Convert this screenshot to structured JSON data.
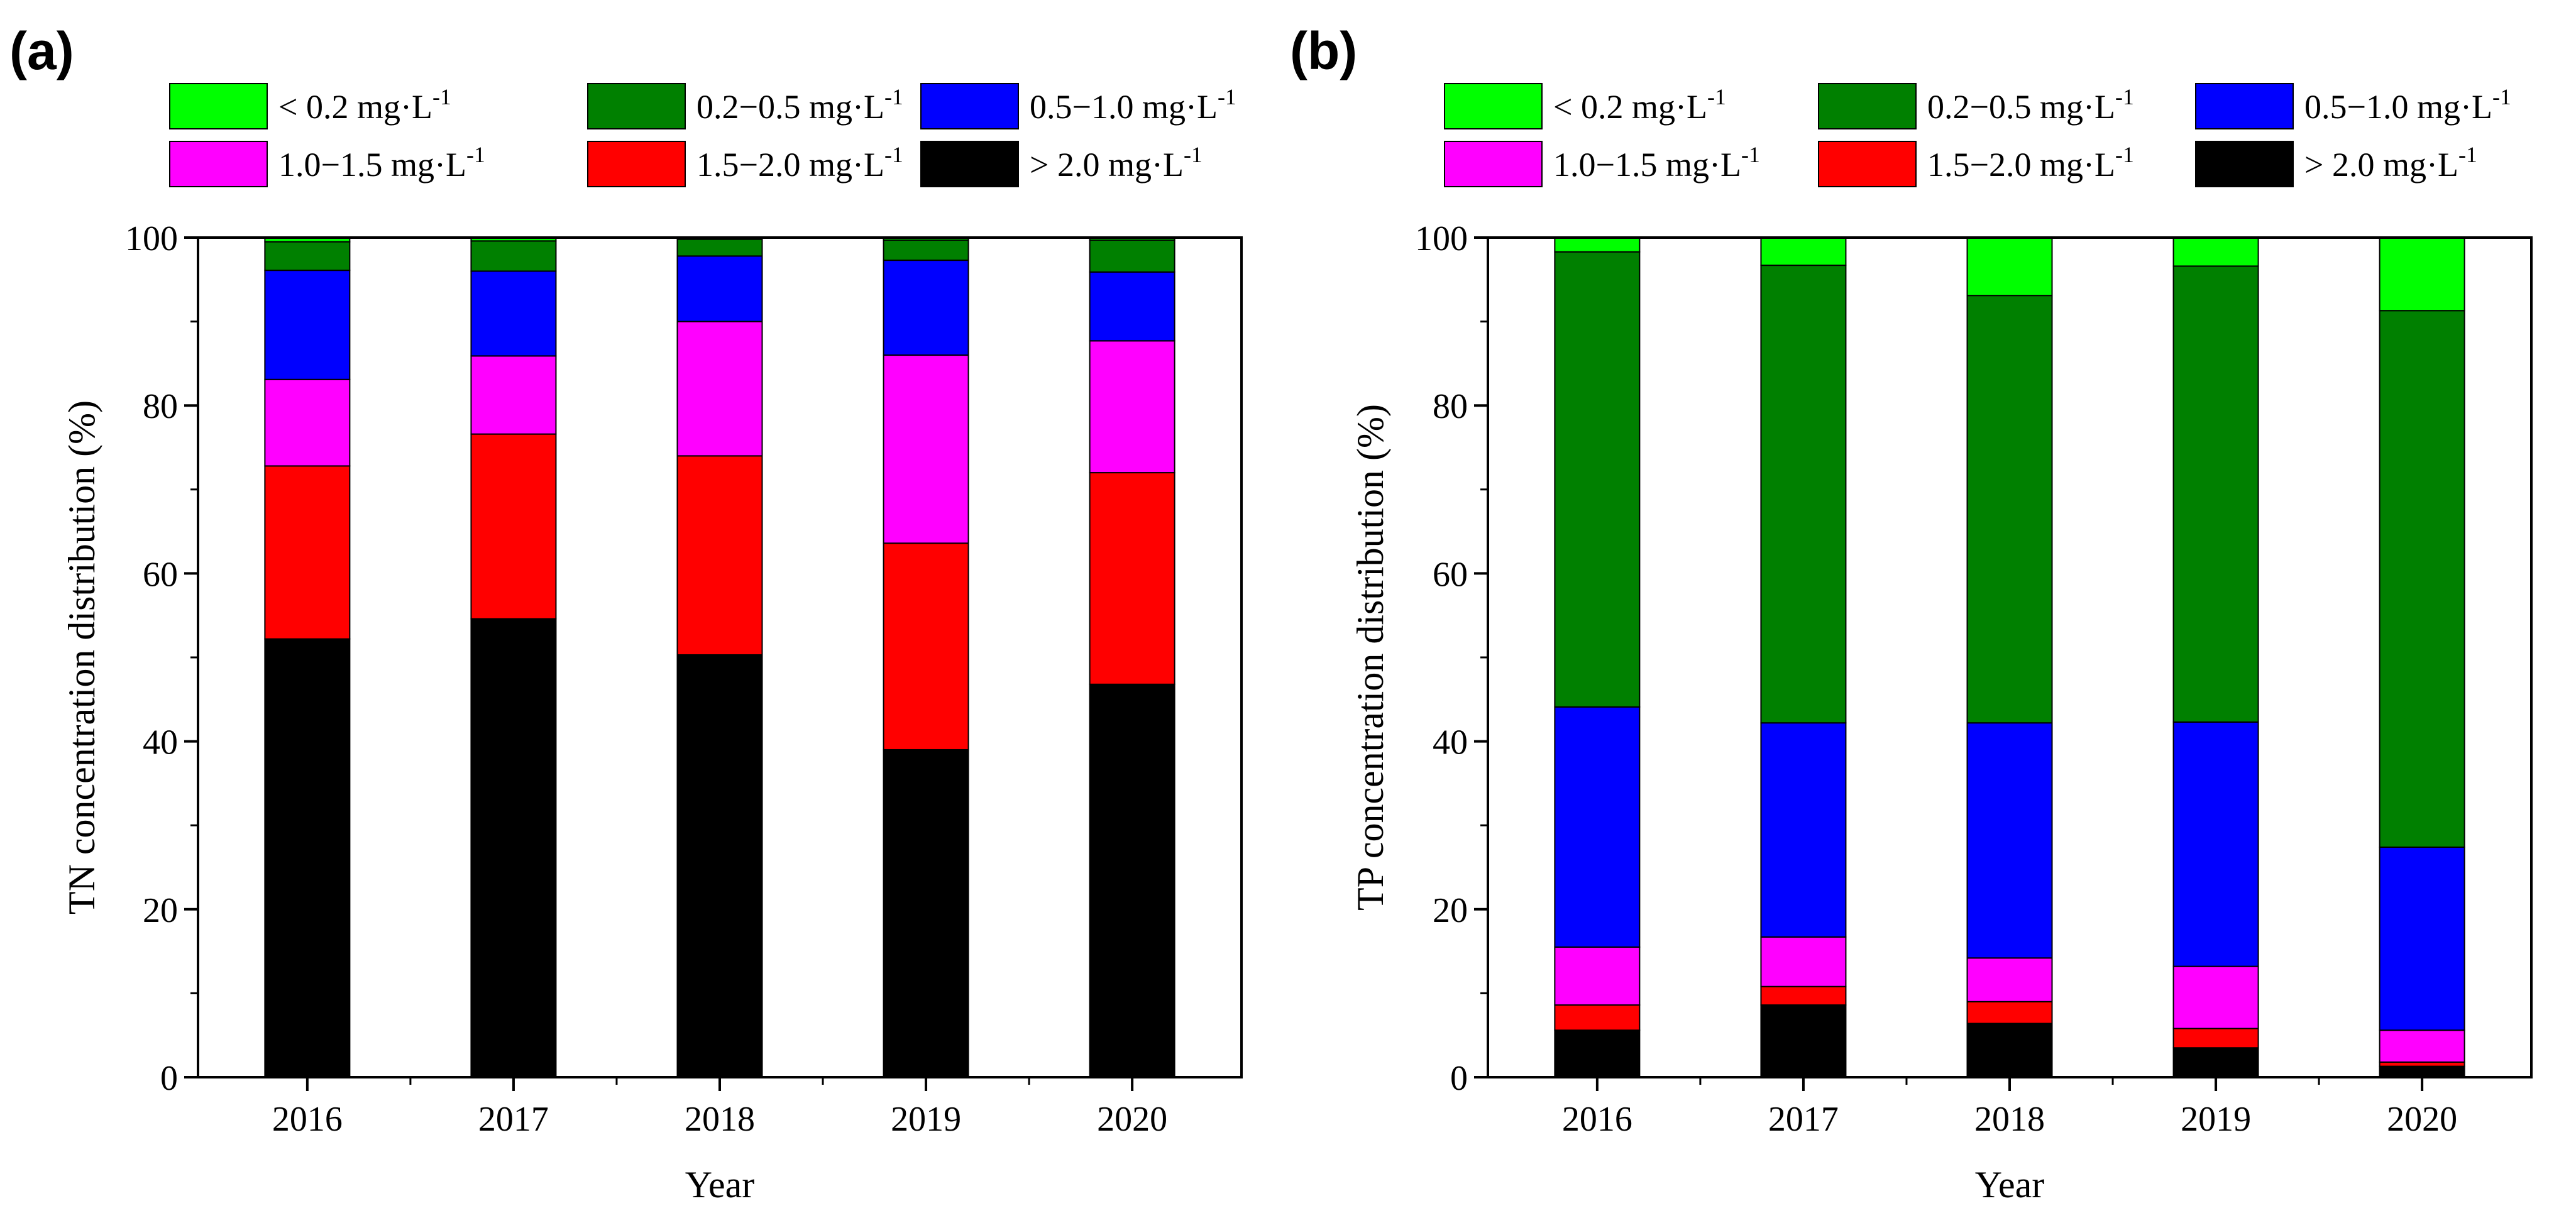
{
  "chart_data": [
    {
      "panel_label": "(a)",
      "type": "bar",
      "stacked": true,
      "title": "",
      "xlabel": "Year",
      "ylabel": "TN concentration distribution (%)",
      "ylim": [
        0,
        100
      ],
      "yticks": [
        "0",
        "20",
        "40",
        "60",
        "80",
        "100"
      ],
      "categories": [
        "2016",
        "2017",
        "2018",
        "2019",
        "2020"
      ],
      "legend_position": "top",
      "series": [
        {
          "name": "> 2.0 mg·L",
          "sup": "-1",
          "color": "#000000",
          "values": [
            52.2,
            54.6,
            50.3,
            39.0,
            46.8
          ]
        },
        {
          "name": "1.5−2.0 mg·L",
          "sup": "-1",
          "color": "#ff0000",
          "values": [
            20.6,
            22.0,
            23.7,
            24.6,
            25.2
          ]
        },
        {
          "name": "1.0−1.5 mg·L",
          "sup": "-1",
          "color": "#ff00ff",
          "values": [
            10.3,
            9.3,
            16.0,
            22.4,
            15.7
          ]
        },
        {
          "name": "0.5−1.0 mg·L",
          "sup": "-1",
          "color": "#0000ff",
          "values": [
            13.0,
            10.1,
            7.8,
            11.3,
            8.2
          ]
        },
        {
          "name": "0.2−0.5 mg·L",
          "sup": "-1",
          "color": "#008000",
          "values": [
            3.4,
            3.6,
            2.0,
            2.4,
            3.8
          ]
        },
        {
          "name": "< 0.2 mg·L",
          "sup": "-1",
          "color": "#00ff00",
          "values": [
            0.5,
            0.4,
            0.2,
            0.3,
            0.3
          ]
        }
      ]
    },
    {
      "panel_label": "(b)",
      "type": "bar",
      "stacked": true,
      "title": "",
      "xlabel": "Year",
      "ylabel": "TP concentration distribution (%)",
      "ylim": [
        0,
        100
      ],
      "yticks": [
        "0",
        "20",
        "40",
        "60",
        "80",
        "100"
      ],
      "categories": [
        "2016",
        "2017",
        "2018",
        "2019",
        "2020"
      ],
      "legend_position": "top",
      "series": [
        {
          "name": "> 2.0 mg·L",
          "sup": "-1",
          "color": "#000000",
          "values": [
            5.6,
            8.6,
            6.4,
            3.5,
            1.3
          ]
        },
        {
          "name": "1.5−2.0 mg·L",
          "sup": "-1",
          "color": "#ff0000",
          "values": [
            3.0,
            2.2,
            2.6,
            2.3,
            0.5
          ]
        },
        {
          "name": "1.0−1.5 mg·L",
          "sup": "-1",
          "color": "#ff00ff",
          "values": [
            6.9,
            5.9,
            5.2,
            7.4,
            3.8
          ]
        },
        {
          "name": "0.5−1.0 mg·L",
          "sup": "-1",
          "color": "#0000ff",
          "values": [
            28.6,
            25.5,
            28.0,
            29.1,
            21.8
          ]
        },
        {
          "name": "0.2−0.5 mg·L",
          "sup": "-1",
          "color": "#008000",
          "values": [
            54.2,
            54.5,
            50.9,
            54.3,
            63.9
          ]
        },
        {
          "name": "< 0.2 mg·L",
          "sup": "-1",
          "color": "#00ff00",
          "values": [
            1.7,
            3.3,
            6.9,
            3.4,
            8.7
          ]
        }
      ]
    }
  ]
}
